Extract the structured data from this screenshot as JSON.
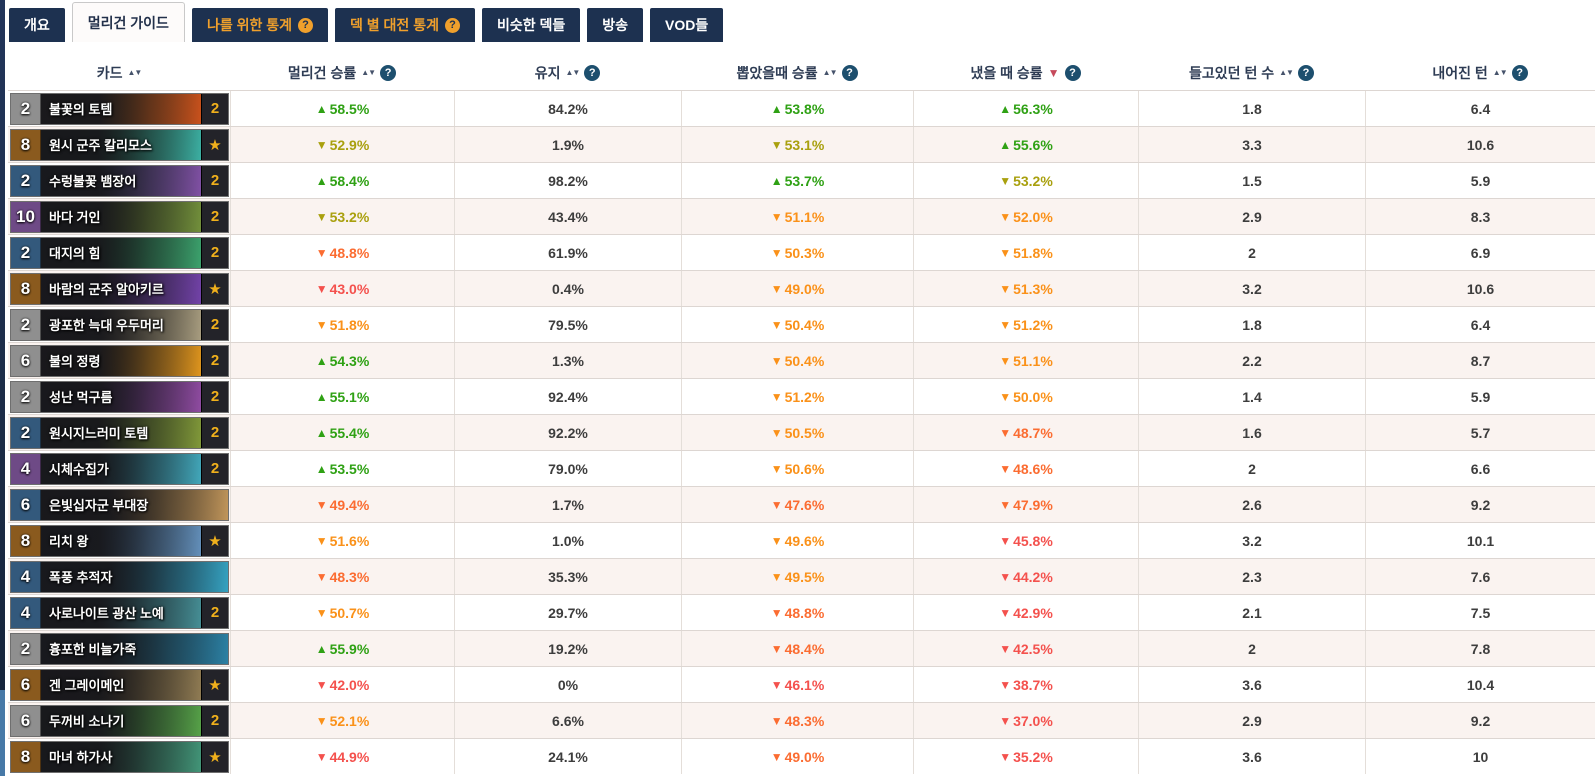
{
  "tabs": [
    {
      "name": "tab-overview",
      "label": "개요",
      "style": "dark",
      "help": false
    },
    {
      "name": "tab-mulligan-guide",
      "label": "멀리건 가이드",
      "style": "active",
      "help": false
    },
    {
      "name": "tab-my-stats",
      "label": "나를 위한 통계",
      "style": "gold",
      "help": true
    },
    {
      "name": "tab-deck-matchups",
      "label": "덱 별 대전 통계",
      "style": "gold",
      "help": true
    },
    {
      "name": "tab-similar-decks",
      "label": "비슷한 덱들",
      "style": "dark",
      "help": false
    },
    {
      "name": "tab-broadcast",
      "label": "방송",
      "style": "dark",
      "help": false
    },
    {
      "name": "tab-vods",
      "label": "VOD들",
      "style": "dark",
      "help": false
    }
  ],
  "glyphs": {
    "sort_up": "▲",
    "sort_down": "▼",
    "sort_both": "▲▼",
    "help": "?",
    "star": "★"
  },
  "palette": {
    "tab_bg": "#1d3150",
    "tab_gold": "#f0a02c",
    "tab_active_bg": "#fdfbfa",
    "tab_active_text": "#22304a",
    "sort_active": "#c64a5c",
    "help_bg": "#1d4f6e",
    "count_gold": "#f0b01c",
    "rarity": {
      "common": "#8f8f8f",
      "rare": "#33597c",
      "epic": "#6e4a86",
      "legendary": "#8a5a1e"
    },
    "tones": {
      "green": "#2fa114",
      "olive": "#a9a00e",
      "orange": "#fa9119",
      "orange_red": "#fb6c31",
      "red": "#f4514d"
    }
  },
  "table": {
    "columns": [
      {
        "name": "col-card",
        "label": "카드",
        "sort": "both",
        "help": false
      },
      {
        "name": "col-mulligan-winrate",
        "label": "멀리건 승률",
        "sort": "both",
        "help": true
      },
      {
        "name": "col-kept",
        "label": "유지",
        "sort": "both",
        "help": true
      },
      {
        "name": "col-drawn-winrate",
        "label": "뽑았을때 승률",
        "sort": "both",
        "help": true
      },
      {
        "name": "col-played-winrate",
        "label": "냈을 때 승률",
        "sort": "desc",
        "help": true
      },
      {
        "name": "col-turns-held",
        "label": "들고있던 턴 수",
        "sort": "both",
        "help": true
      },
      {
        "name": "col-turn-played",
        "label": "내어진 턴",
        "sort": "both",
        "help": true
      }
    ],
    "rows": [
      {
        "card": {
          "cost": "2",
          "name": "불꽃의 토템",
          "rarity": "common",
          "count": "2",
          "art": [
            "#4a3a14",
            "#d9561c"
          ]
        },
        "mulligan": {
          "value": "58.5%",
          "dir": "up",
          "tone": "green"
        },
        "kept": "84.2%",
        "drawn": {
          "value": "53.8%",
          "dir": "up",
          "tone": "green"
        },
        "played": {
          "value": "56.3%",
          "dir": "up",
          "tone": "green"
        },
        "held": "1.8",
        "turn": "6.4"
      },
      {
        "card": {
          "cost": "8",
          "name": "원시 군주 칼리모스",
          "rarity": "legendary",
          "count": "star",
          "art": [
            "#16321c",
            "#3fbcae"
          ]
        },
        "mulligan": {
          "value": "52.9%",
          "dir": "down",
          "tone": "olive"
        },
        "kept": "1.9%",
        "drawn": {
          "value": "53.1%",
          "dir": "down",
          "tone": "olive"
        },
        "played": {
          "value": "55.6%",
          "dir": "up",
          "tone": "green"
        },
        "held": "3.3",
        "turn": "10.6"
      },
      {
        "card": {
          "cost": "2",
          "name": "수렁불꽃 뱀장어",
          "rarity": "rare",
          "count": "2",
          "art": [
            "#1c3340",
            "#8a55b0"
          ]
        },
        "mulligan": {
          "value": "58.4%",
          "dir": "up",
          "tone": "green"
        },
        "kept": "98.2%",
        "drawn": {
          "value": "53.7%",
          "dir": "up",
          "tone": "green"
        },
        "played": {
          "value": "53.2%",
          "dir": "down",
          "tone": "olive"
        },
        "held": "1.5",
        "turn": "5.9"
      },
      {
        "card": {
          "cost": "10",
          "name": "바다 거인",
          "rarity": "epic",
          "count": "2",
          "art": [
            "#2e3318",
            "#7a9a3e"
          ]
        },
        "mulligan": {
          "value": "53.2%",
          "dir": "down",
          "tone": "olive"
        },
        "kept": "43.4%",
        "drawn": {
          "value": "51.1%",
          "dir": "down",
          "tone": "orange"
        },
        "played": {
          "value": "52.0%",
          "dir": "down",
          "tone": "orange"
        },
        "held": "2.9",
        "turn": "8.3"
      },
      {
        "card": {
          "cost": "2",
          "name": "대지의 힘",
          "rarity": "rare",
          "count": "2",
          "art": [
            "#173423",
            "#3fae74"
          ]
        },
        "mulligan": {
          "value": "48.8%",
          "dir": "down",
          "tone": "orange_red"
        },
        "kept": "61.9%",
        "drawn": {
          "value": "50.3%",
          "dir": "down",
          "tone": "orange"
        },
        "played": {
          "value": "51.8%",
          "dir": "down",
          "tone": "orange"
        },
        "held": "2",
        "turn": "6.9"
      },
      {
        "card": {
          "cost": "8",
          "name": "바람의 군주 알아키르",
          "rarity": "legendary",
          "count": "star",
          "art": [
            "#271a38",
            "#7a46b4"
          ]
        },
        "mulligan": {
          "value": "43.0%",
          "dir": "down",
          "tone": "red"
        },
        "kept": "0.4%",
        "drawn": {
          "value": "49.0%",
          "dir": "down",
          "tone": "orange"
        },
        "played": {
          "value": "51.3%",
          "dir": "down",
          "tone": "orange"
        },
        "held": "3.2",
        "turn": "10.6"
      },
      {
        "card": {
          "cost": "2",
          "name": "광포한 늑대 우두머리",
          "rarity": "common",
          "count": "2",
          "art": [
            "#2c2820",
            "#b4a888"
          ]
        },
        "mulligan": {
          "value": "51.8%",
          "dir": "down",
          "tone": "orange"
        },
        "kept": "79.5%",
        "drawn": {
          "value": "50.4%",
          "dir": "down",
          "tone": "orange"
        },
        "played": {
          "value": "51.2%",
          "dir": "down",
          "tone": "orange"
        },
        "held": "1.8",
        "turn": "6.4"
      },
      {
        "card": {
          "cost": "6",
          "name": "불의 정령",
          "rarity": "common",
          "count": "2",
          "art": [
            "#3a2410",
            "#f0a01e"
          ]
        },
        "mulligan": {
          "value": "54.3%",
          "dir": "up",
          "tone": "green"
        },
        "kept": "1.3%",
        "drawn": {
          "value": "50.4%",
          "dir": "down",
          "tone": "orange"
        },
        "played": {
          "value": "51.1%",
          "dir": "down",
          "tone": "orange"
        },
        "held": "2.2",
        "turn": "8.7"
      },
      {
        "card": {
          "cost": "2",
          "name": "성난 먹구름",
          "rarity": "common",
          "count": "2",
          "art": [
            "#241a33",
            "#9a50ad"
          ]
        },
        "mulligan": {
          "value": "55.1%",
          "dir": "up",
          "tone": "green"
        },
        "kept": "92.4%",
        "drawn": {
          "value": "51.2%",
          "dir": "down",
          "tone": "orange"
        },
        "played": {
          "value": "50.0%",
          "dir": "down",
          "tone": "orange"
        },
        "held": "1.4",
        "turn": "5.9"
      },
      {
        "card": {
          "cost": "2",
          "name": "원시지느러미 토템",
          "rarity": "rare",
          "count": "2",
          "art": [
            "#2c3a1a",
            "#8aa43c"
          ]
        },
        "mulligan": {
          "value": "55.4%",
          "dir": "up",
          "tone": "green"
        },
        "kept": "92.2%",
        "drawn": {
          "value": "50.5%",
          "dir": "down",
          "tone": "orange"
        },
        "played": {
          "value": "48.7%",
          "dir": "down",
          "tone": "orange_red"
        },
        "held": "1.6",
        "turn": "5.7"
      },
      {
        "card": {
          "cost": "4",
          "name": "시체수집가",
          "rarity": "epic",
          "count": "2",
          "art": [
            "#16303a",
            "#46b4c8"
          ]
        },
        "mulligan": {
          "value": "53.5%",
          "dir": "up",
          "tone": "green"
        },
        "kept": "79.0%",
        "drawn": {
          "value": "50.6%",
          "dir": "down",
          "tone": "orange"
        },
        "played": {
          "value": "48.6%",
          "dir": "down",
          "tone": "orange_red"
        },
        "held": "2",
        "turn": "6.6"
      },
      {
        "card": {
          "cost": "6",
          "name": "은빛십자군 부대장",
          "rarity": "rare",
          "count": null,
          "art": [
            "#322a1c",
            "#cfa060"
          ]
        },
        "mulligan": {
          "value": "49.4%",
          "dir": "down",
          "tone": "orange_red"
        },
        "kept": "1.7%",
        "drawn": {
          "value": "47.6%",
          "dir": "down",
          "tone": "orange_red"
        },
        "played": {
          "value": "47.9%",
          "dir": "down",
          "tone": "orange_red"
        },
        "held": "2.6",
        "turn": "9.2"
      },
      {
        "card": {
          "cost": "8",
          "name": "리치 왕",
          "rarity": "legendary",
          "count": "star",
          "art": [
            "#1a2838",
            "#6a9ac8"
          ]
        },
        "mulligan": {
          "value": "51.6%",
          "dir": "down",
          "tone": "orange"
        },
        "kept": "1.0%",
        "drawn": {
          "value": "49.6%",
          "dir": "down",
          "tone": "orange"
        },
        "played": {
          "value": "45.8%",
          "dir": "down",
          "tone": "red"
        },
        "held": "3.2",
        "turn": "10.1"
      },
      {
        "card": {
          "cost": "4",
          "name": "폭풍 추적자",
          "rarity": "rare",
          "count": null,
          "art": [
            "#152c3e",
            "#38aecf"
          ]
        },
        "mulligan": {
          "value": "48.3%",
          "dir": "down",
          "tone": "orange_red"
        },
        "kept": "35.3%",
        "drawn": {
          "value": "49.5%",
          "dir": "down",
          "tone": "orange"
        },
        "played": {
          "value": "44.2%",
          "dir": "down",
          "tone": "red"
        },
        "held": "2.3",
        "turn": "7.6"
      },
      {
        "card": {
          "cost": "4",
          "name": "사로나이트 광산 노예",
          "rarity": "rare",
          "count": "2",
          "art": [
            "#1b3038",
            "#4a99a0"
          ]
        },
        "mulligan": {
          "value": "50.7%",
          "dir": "down",
          "tone": "orange"
        },
        "kept": "29.7%",
        "drawn": {
          "value": "48.8%",
          "dir": "down",
          "tone": "orange_red"
        },
        "played": {
          "value": "42.9%",
          "dir": "down",
          "tone": "red"
        },
        "held": "2.1",
        "turn": "7.5"
      },
      {
        "card": {
          "cost": "2",
          "name": "흉포한 비늘가죽",
          "rarity": "common",
          "count": null,
          "art": [
            "#143340",
            "#2e8ab0"
          ]
        },
        "mulligan": {
          "value": "55.9%",
          "dir": "up",
          "tone": "green"
        },
        "kept": "19.2%",
        "drawn": {
          "value": "48.4%",
          "dir": "down",
          "tone": "orange_red"
        },
        "played": {
          "value": "42.5%",
          "dir": "down",
          "tone": "red"
        },
        "held": "2",
        "turn": "7.8"
      },
      {
        "card": {
          "cost": "6",
          "name": "겐 그레이메인",
          "rarity": "legendary",
          "count": "star",
          "art": [
            "#2a2014",
            "#9a8458"
          ]
        },
        "mulligan": {
          "value": "42.0%",
          "dir": "down",
          "tone": "red"
        },
        "kept": "0%",
        "drawn": {
          "value": "46.1%",
          "dir": "down",
          "tone": "red"
        },
        "played": {
          "value": "38.7%",
          "dir": "down",
          "tone": "red"
        },
        "held": "3.6",
        "turn": "10.4"
      },
      {
        "card": {
          "cost": "6",
          "name": "두꺼비 소나기",
          "rarity": "common",
          "count": "2",
          "art": [
            "#1b3320",
            "#5cae4c"
          ]
        },
        "mulligan": {
          "value": "52.1%",
          "dir": "down",
          "tone": "orange"
        },
        "kept": "6.6%",
        "drawn": {
          "value": "48.3%",
          "dir": "down",
          "tone": "orange_red"
        },
        "played": {
          "value": "37.0%",
          "dir": "down",
          "tone": "red"
        },
        "held": "2.9",
        "turn": "9.2"
      },
      {
        "card": {
          "cost": "8",
          "name": "마녀 하가사",
          "rarity": "legendary",
          "count": "star",
          "art": [
            "#1c332a",
            "#46a080"
          ]
        },
        "mulligan": {
          "value": "44.9%",
          "dir": "down",
          "tone": "red"
        },
        "kept": "24.1%",
        "drawn": {
          "value": "49.0%",
          "dir": "down",
          "tone": "orange_red"
        },
        "played": {
          "value": "35.2%",
          "dir": "down",
          "tone": "red"
        },
        "held": "3.6",
        "turn": "10"
      }
    ]
  }
}
